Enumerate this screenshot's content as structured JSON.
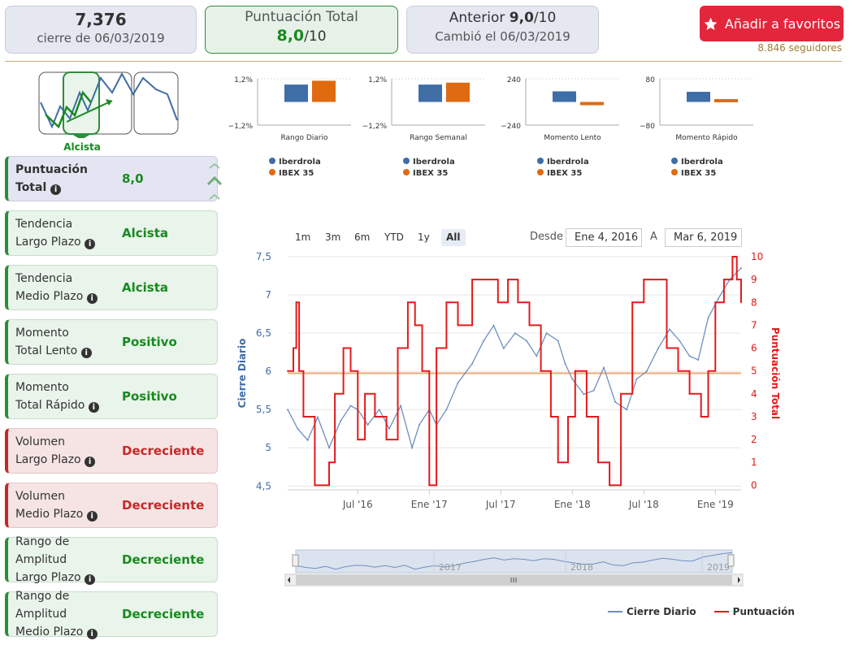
{
  "price_card": {
    "value": "7,376",
    "date": "cierre de 06/03/2019"
  },
  "score_card": {
    "title": "Puntuación Total",
    "score": "8,0",
    "max": "/10"
  },
  "prev_card": {
    "label": "Anterior",
    "score": "9,0",
    "max": "/10",
    "changed": "Cambió el 06/03/2019"
  },
  "favorite": {
    "label": "Añadir a favoritos",
    "icon": "star-icon",
    "followers": "8.846 seguidores"
  },
  "trend_widget": {
    "label": "Alcista"
  },
  "criteria": [
    {
      "l1": "Puntuación",
      "l2": "Total",
      "value": "8,0",
      "status": "blue"
    },
    {
      "l1": "Tendencia",
      "l2": "Largo Plazo",
      "value": "Alcista",
      "status": "green"
    },
    {
      "l1": "Tendencia",
      "l2": "Medio Plazo",
      "value": "Alcista",
      "status": "green"
    },
    {
      "l1": "Momento",
      "l2": "Total Lento",
      "value": "Positivo",
      "status": "green"
    },
    {
      "l1": "Momento",
      "l2": "Total Rápido",
      "value": "Positivo",
      "status": "green"
    },
    {
      "l1": "Volumen",
      "l2": "Largo Plazo",
      "value": "Decreciente",
      "status": "red"
    },
    {
      "l1": "Volumen",
      "l2": "Medio Plazo",
      "value": "Decreciente",
      "status": "red"
    },
    {
      "l1": "Rango de Amplitud",
      "l2": "Largo Plazo",
      "value": "Decreciente",
      "status": "green"
    },
    {
      "l1": "Rango de Amplitud",
      "l2": "Medio Plazo",
      "value": "Decreciente",
      "status": "green"
    }
  ],
  "colors": {
    "iberdrola": "#3f6da6",
    "ibex": "#e06a10",
    "score_line": "#e31a1c",
    "price_line": "#6e8fbf",
    "threshold": "#f0a878"
  },
  "range": {
    "buttons": [
      "1m",
      "3m",
      "6m",
      "YTD",
      "1y",
      "All"
    ],
    "selected": "All",
    "from_label": "Desde",
    "from": "Ene 4, 2016",
    "to_label": "A",
    "to": "Mar 6, 2019"
  },
  "nav_labels": [
    "2017",
    "2018",
    "2019"
  ],
  "chart_data": [
    {
      "type": "bar",
      "xlabel": "Rango Diario",
      "ytick_labels": [
        "1,2%",
        "−1,2%"
      ],
      "series": [
        {
          "name": "Iberdrola",
          "values": [
            0.9
          ]
        },
        {
          "name": "IBEX 35",
          "values": [
            1.1
          ]
        }
      ],
      "ylim": [
        -1.2,
        1.2
      ]
    },
    {
      "type": "bar",
      "xlabel": "Rango Semanal",
      "ytick_labels": [
        "1,2%",
        "−1,2%"
      ],
      "series": [
        {
          "name": "Iberdrola",
          "values": [
            0.9
          ]
        },
        {
          "name": "IBEX 35",
          "values": [
            1.0
          ]
        }
      ],
      "ylim": [
        -1.2,
        1.2
      ]
    },
    {
      "type": "bar",
      "xlabel": "Momento Lento",
      "ytick_labels": [
        "240",
        "−240"
      ],
      "series": [
        {
          "name": "Iberdrola",
          "values": [
            110
          ]
        },
        {
          "name": "IBEX 35",
          "values": [
            -20
          ]
        }
      ],
      "ylim": [
        -240,
        240
      ]
    },
    {
      "type": "bar",
      "xlabel": "Momento Rápido",
      "ytick_labels": [
        "80",
        "−80"
      ],
      "series": [
        {
          "name": "Iberdrola",
          "values": [
            35
          ]
        },
        {
          "name": "IBEX 35",
          "values": [
            10
          ]
        }
      ],
      "ylim": [
        -80,
        80
      ]
    },
    {
      "type": "line",
      "ylabel": "Cierre Diario",
      "y2label": "Puntuación Total",
      "x_ticks": [
        "Jul '16",
        "Ene '17",
        "Jul '17",
        "Ene '18",
        "Jul '18",
        "Ene '19"
      ],
      "x_tick_pos": [
        2016.5,
        2017.0,
        2017.5,
        2018.0,
        2018.5,
        2019.0
      ],
      "xlim": [
        2016.01,
        2019.18
      ],
      "y_ticks": [
        "7,5",
        "7",
        "6,5",
        "6",
        "5,5",
        "5",
        "4,5"
      ],
      "y_tick_vals": [
        7.5,
        7,
        6.5,
        6,
        5.5,
        5,
        4.5
      ],
      "ylim": [
        4.45,
        7.5
      ],
      "y2_ticks": [
        "10",
        "9",
        "8",
        "7",
        "6",
        "5",
        "4",
        "3",
        "2",
        "1",
        "0"
      ],
      "y2lim": [
        -0.2,
        10
      ],
      "threshold": 4.9,
      "series": [
        {
          "name": "Cierre Diario",
          "axis": "left",
          "x": [
            2016.01,
            2016.08,
            2016.15,
            2016.22,
            2016.3,
            2016.38,
            2016.45,
            2016.5,
            2016.57,
            2016.65,
            2016.72,
            2016.8,
            2016.88,
            2016.93,
            2017.0,
            2017.05,
            2017.12,
            2017.2,
            2017.3,
            2017.38,
            2017.45,
            2017.52,
            2017.6,
            2017.68,
            2017.75,
            2017.82,
            2017.9,
            2017.95,
            2018.0,
            2018.08,
            2018.15,
            2018.22,
            2018.3,
            2018.38,
            2018.45,
            2018.52,
            2018.6,
            2018.68,
            2018.75,
            2018.82,
            2018.88,
            2018.95,
            2019.02,
            2019.1,
            2019.18
          ],
          "y": [
            5.5,
            5.25,
            5.1,
            5.4,
            5.0,
            5.35,
            5.55,
            5.5,
            5.3,
            5.5,
            5.25,
            5.55,
            5.0,
            5.3,
            5.5,
            5.3,
            5.5,
            5.85,
            6.1,
            6.4,
            6.6,
            6.3,
            6.5,
            6.4,
            6.2,
            6.5,
            6.4,
            6.1,
            5.9,
            5.7,
            5.75,
            6.05,
            5.6,
            5.5,
            5.9,
            6.0,
            6.3,
            6.55,
            6.4,
            6.2,
            6.15,
            6.7,
            6.95,
            7.2,
            7.35
          ]
        },
        {
          "name": "Puntuación",
          "axis": "right",
          "x": [
            2016.01,
            2016.05,
            2016.07,
            2016.09,
            2016.12,
            2016.2,
            2016.3,
            2016.34,
            2016.4,
            2016.45,
            2016.5,
            2016.55,
            2016.62,
            2016.7,
            2016.78,
            2016.85,
            2016.9,
            2016.95,
            2017.0,
            2017.05,
            2017.12,
            2017.2,
            2017.3,
            2017.4,
            2017.48,
            2017.55,
            2017.62,
            2017.7,
            2017.78,
            2017.85,
            2017.9,
            2017.97,
            2018.02,
            2018.1,
            2018.18,
            2018.26,
            2018.34,
            2018.42,
            2018.5,
            2018.58,
            2018.66,
            2018.74,
            2018.82,
            2018.9,
            2018.95,
            2019.0,
            2019.06,
            2019.12,
            2019.15,
            2019.18
          ],
          "y": [
            5,
            6,
            8,
            5,
            3,
            0,
            1,
            4,
            6,
            5,
            2,
            4,
            3,
            2,
            6,
            8,
            7,
            5,
            0,
            6,
            8,
            7,
            9,
            9,
            8,
            9,
            8,
            7,
            5,
            3,
            1,
            3,
            5,
            3,
            1,
            0,
            4,
            8,
            9,
            9,
            6,
            5,
            4,
            3,
            5,
            8,
            9,
            10,
            9,
            8
          ]
        }
      ]
    },
    {
      "type": "line",
      "role": "navigator",
      "x_ticks": [
        "2017",
        "2018",
        "2019"
      ],
      "series": [
        {
          "name": "Cierre Diario",
          "y": [
            5.5,
            5.25,
            5.1,
            5.4,
            5.0,
            5.35,
            5.55,
            5.5,
            5.3,
            5.5,
            5.25,
            5.55,
            5.0,
            5.3,
            5.5,
            5.3,
            5.5,
            5.85,
            6.1,
            6.4,
            6.6,
            6.3,
            6.5,
            6.4,
            6.2,
            6.5,
            6.4,
            6.1,
            5.9,
            5.7,
            5.75,
            6.05,
            5.6,
            5.5,
            5.9,
            6.0,
            6.3,
            6.55,
            6.4,
            6.2,
            6.15,
            6.7,
            6.95,
            7.2,
            7.35
          ]
        }
      ]
    }
  ],
  "legend": [
    {
      "name": "Cierre Diario",
      "color": "#6e8fbf"
    },
    {
      "name": "Puntuación",
      "color": "#e31a1c"
    }
  ],
  "mini_legend": [
    "Iberdrola",
    "IBEX 35"
  ]
}
